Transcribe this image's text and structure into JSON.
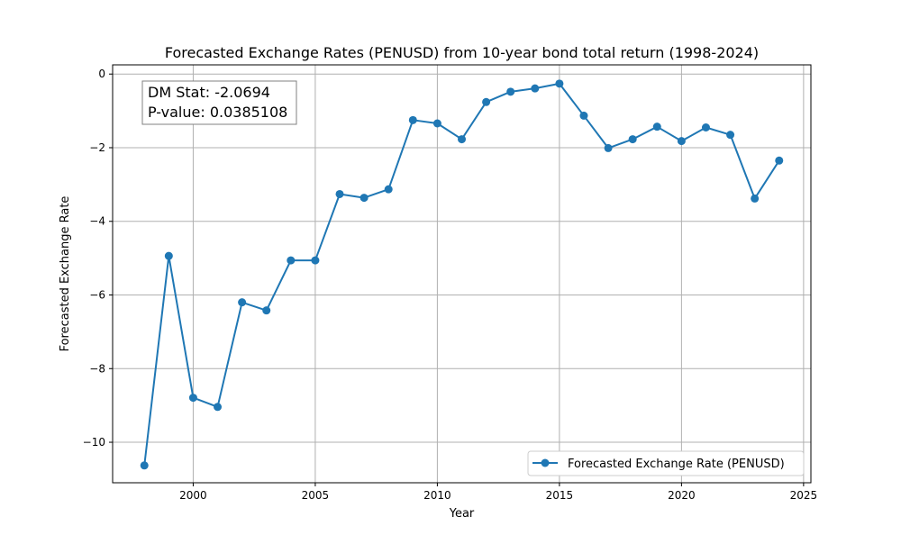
{
  "chart_data": {
    "type": "line",
    "title": "Forecasted Exchange Rates (PENUSD) from 10-year bond total return (1998-2024)",
    "xlabel": "Year",
    "ylabel": "Forecasted Exchange Rate",
    "xlim": [
      1996.7,
      2025.3
    ],
    "ylim": [
      -11.1,
      0.25
    ],
    "x_ticks": [
      2000,
      2005,
      2010,
      2015,
      2020,
      2025
    ],
    "y_ticks": [
      0,
      -2,
      -4,
      -6,
      -8,
      -10
    ],
    "x_tick_labels": [
      "2000",
      "2005",
      "2010",
      "2015",
      "2020",
      "2025"
    ],
    "y_tick_labels": [
      "0",
      "−2",
      "−4",
      "−6",
      "−8",
      "−10"
    ],
    "grid": true,
    "legend_position": "lower-right",
    "series": [
      {
        "name": "Forecasted Exchange Rate (PENUSD)",
        "color": "#1f77b4",
        "marker": "circle",
        "x": [
          1998,
          1999,
          2000,
          2001,
          2002,
          2003,
          2004,
          2005,
          2006,
          2007,
          2008,
          2009,
          2010,
          2011,
          2012,
          2013,
          2014,
          2015,
          2016,
          2017,
          2018,
          2019,
          2020,
          2021,
          2022,
          2023,
          2024
        ],
        "y": [
          -10.63,
          -4.94,
          -8.79,
          -9.04,
          -6.2,
          -6.42,
          -5.06,
          -5.06,
          -3.26,
          -3.36,
          -3.13,
          -1.25,
          -1.34,
          -1.77,
          -0.76,
          -0.48,
          -0.39,
          -0.26,
          -1.13,
          -2.01,
          -1.77,
          -1.43,
          -1.82,
          -1.45,
          -1.65,
          -3.38,
          -2.35
        ]
      }
    ],
    "annotation": {
      "line1": "DM Stat: -2.0694",
      "line2": "P-value: 0.0385108"
    }
  }
}
